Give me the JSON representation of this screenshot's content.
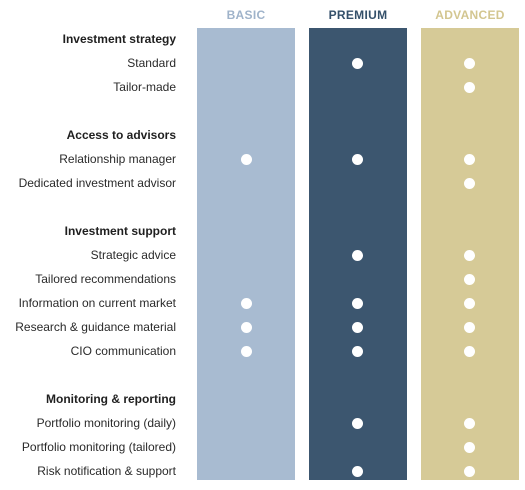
{
  "tiers": {
    "basic": "BASIC",
    "premium": "PREMIUM",
    "advanced": "ADVANCED"
  },
  "colors": {
    "basic": "#a8bbd1",
    "premium": "#3c566f",
    "advanced": "#d6ca97"
  },
  "sections": [
    {
      "title": "Investment strategy",
      "rows": [
        {
          "label": "Standard",
          "basic": false,
          "premium": true,
          "advanced": true
        },
        {
          "label": "Tailor-made",
          "basic": false,
          "premium": false,
          "advanced": true
        }
      ]
    },
    {
      "title": "Access to advisors",
      "rows": [
        {
          "label": "Relationship manager",
          "basic": true,
          "premium": true,
          "advanced": true
        },
        {
          "label": "Dedicated investment advisor",
          "basic": false,
          "premium": false,
          "advanced": true
        }
      ]
    },
    {
      "title": "Investment support",
      "rows": [
        {
          "label": "Strategic advice",
          "basic": false,
          "premium": true,
          "advanced": true
        },
        {
          "label": "Tailored recommendations",
          "basic": false,
          "premium": false,
          "advanced": true
        },
        {
          "label": "Information on current market",
          "basic": true,
          "premium": true,
          "advanced": true
        },
        {
          "label": "Research & guidance material",
          "basic": true,
          "premium": true,
          "advanced": true
        },
        {
          "label": "CIO communication",
          "basic": true,
          "premium": true,
          "advanced": true
        }
      ]
    },
    {
      "title": "Monitoring & reporting",
      "rows": [
        {
          "label": "Portfolio monitoring (daily)",
          "basic": false,
          "premium": true,
          "advanced": true
        },
        {
          "label": "Portfolio monitoring (tailored)",
          "basic": false,
          "premium": false,
          "advanced": true
        },
        {
          "label": "Risk notification & support",
          "basic": false,
          "premium": true,
          "advanced": true
        }
      ]
    }
  ]
}
